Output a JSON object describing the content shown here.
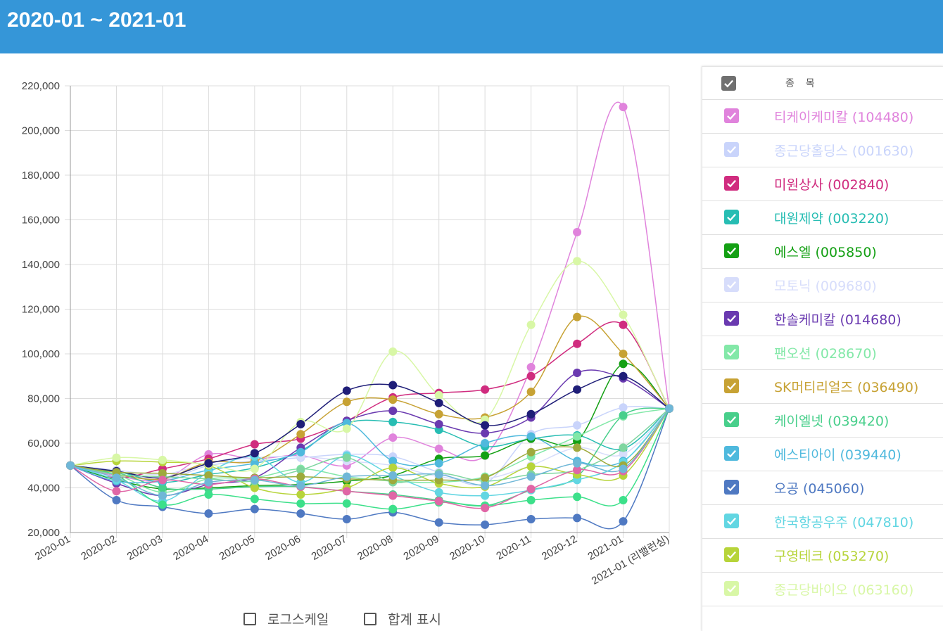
{
  "header": {
    "title": "2020-01 ~ 2021-01"
  },
  "legend": {
    "header_label": "종 목"
  },
  "controls": {
    "log_scale_label": "로그스케일",
    "show_total_label": "합계 표시"
  },
  "chart_data": {
    "type": "line",
    "x": [
      "2020-01",
      "2020-02",
      "2020-03",
      "2020-04",
      "2020-05",
      "2020-06",
      "2020-07",
      "2020-08",
      "2020-09",
      "2020-10",
      "2020-11",
      "2020-12",
      "2021-01",
      "2021-01 (리밸런싱)"
    ],
    "ylim": [
      20000,
      220000
    ],
    "yticks": [
      20000,
      40000,
      60000,
      80000,
      100000,
      120000,
      140000,
      160000,
      180000,
      200000,
      220000
    ],
    "ytick_labels": [
      "20,000",
      "40,000",
      "60,000",
      "80,000",
      "100,000",
      "120,000",
      "140,000",
      "160,000",
      "180,000",
      "200,000",
      "220,000"
    ],
    "grid": true,
    "legend_position": "right",
    "series": [
      {
        "name": "티케이케미칼 (104480)",
        "color": "#e083dc",
        "values": [
          50000,
          45500,
          43500,
          55000,
          53000,
          54500,
          50000,
          62500,
          57500,
          54500,
          94000,
          154500,
          210500,
          75500
        ]
      },
      {
        "name": "종근당홀딩스 (001630)",
        "color": "#c9d4fb",
        "values": [
          50000,
          47500,
          43500,
          50000,
          52000,
          53500,
          55000,
          54000,
          47000,
          42000,
          64000,
          68000,
          76000,
          75500
        ]
      },
      {
        "name": "미원상사 (002840)",
        "color": "#d02c7f",
        "values": [
          50000,
          44500,
          48500,
          53000,
          59500,
          62000,
          70000,
          80500,
          82500,
          84000,
          90000,
          104500,
          113000,
          75500
        ]
      },
      {
        "name": "대원제약 (003220)",
        "color": "#27bdb3",
        "values": [
          50000,
          47500,
          42500,
          46000,
          49000,
          56500,
          69000,
          69500,
          66000,
          58500,
          62000,
          63500,
          57500,
          75500
        ]
      },
      {
        "name": "에스엘 (005850)",
        "color": "#14a014",
        "values": [
          50000,
          43500,
          39500,
          40000,
          41000,
          41500,
          43000,
          45500,
          53000,
          54500,
          62000,
          61000,
          95500,
          75500
        ]
      },
      {
        "name": "모토닉 (009680)",
        "color": "#d7ddfb",
        "values": [
          50000,
          48000,
          46000,
          51000,
          53500,
          54000,
          52000,
          50000,
          45000,
          44000,
          50000,
          58000,
          55000,
          75500
        ]
      },
      {
        "name": "한솔케미칼 (014680)",
        "color": "#6a3ab0",
        "values": [
          50000,
          42000,
          36500,
          41500,
          44500,
          58000,
          70000,
          74500,
          68500,
          64500,
          71500,
          91500,
          89000,
          75500
        ]
      },
      {
        "name": "팬오션 (028670)",
        "color": "#83e8a8",
        "values": [
          50000,
          46000,
          38000,
          44000,
          44500,
          48500,
          45000,
          43000,
          42500,
          45000,
          54000,
          63000,
          72000,
          75500
        ]
      },
      {
        "name": "SK머티리얼즈 (036490)",
        "color": "#c7a234",
        "values": [
          50000,
          46000,
          44000,
          51500,
          52000,
          64000,
          78500,
          79500,
          73000,
          71500,
          83000,
          116500,
          100000,
          75500
        ]
      },
      {
        "name": "케이엘넷 (039420)",
        "color": "#48cf8b",
        "values": [
          50000,
          47000,
          40000,
          39500,
          40500,
          40500,
          38500,
          37000,
          34500,
          32000,
          39000,
          45000,
          72500,
          75500
        ]
      },
      {
        "name": "에스티아이 (039440)",
        "color": "#4fb9dd",
        "values": [
          50000,
          43000,
          43000,
          48000,
          51000,
          56000,
          69000,
          52000,
          51000,
          60000,
          63000,
          52000,
          52000,
          75500
        ]
      },
      {
        "name": "오공 (045060)",
        "color": "#4f79c2",
        "values": [
          50000,
          34500,
          31500,
          28500,
          30500,
          28500,
          26000,
          29000,
          24500,
          23500,
          26000,
          26500,
          25000,
          75500
        ]
      },
      {
        "name": "한국항공우주 (047810)",
        "color": "#62d6e2",
        "values": [
          50000,
          43500,
          34000,
          47000,
          54000,
          42500,
          54500,
          45500,
          38000,
          36500,
          39000,
          43500,
          51500,
          75500
        ]
      },
      {
        "name": "구영테크 (053270)",
        "color": "#b7d43a",
        "values": [
          50000,
          52000,
          51500,
          50000,
          40000,
          37000,
          40000,
          49000,
          42000,
          40500,
          49500,
          46000,
          45500,
          75500
        ]
      },
      {
        "name": "종근당바이오 (063160)",
        "color": "#d8f7a6",
        "values": [
          50000,
          53500,
          52500,
          50500,
          48500,
          69500,
          66500,
          101000,
          81500,
          70500,
          113000,
          141500,
          117500,
          75500
        ]
      },
      {
        "color": "#3ce08a",
        "values": [
          50000,
          45500,
          32500,
          37000,
          35000,
          33000,
          33000,
          30500,
          33500,
          32000,
          34500,
          36000,
          34500,
          75500
        ]
      },
      {
        "color": "#1f1e78",
        "values": [
          50000,
          47500,
          44500,
          51000,
          55500,
          68500,
          83500,
          86000,
          78000,
          68000,
          73000,
          84000,
          90000,
          75500
        ]
      },
      {
        "color": "#7fd6a0",
        "values": [
          50000,
          46000,
          45000,
          44000,
          43000,
          48000,
          53500,
          42500,
          46500,
          43000,
          46000,
          48000,
          58000,
          75500
        ]
      },
      {
        "color": "#9eaa3c",
        "values": [
          50000,
          47000,
          46500,
          45500,
          44500,
          45000,
          44000,
          43500,
          43500,
          44500,
          56000,
          58000,
          50000,
          75500
        ]
      },
      {
        "color": "#e066a6",
        "values": [
          50000,
          38500,
          43500,
          41500,
          44000,
          40500,
          38500,
          36500,
          34000,
          31000,
          39500,
          48000,
          47500,
          75500
        ]
      },
      {
        "color": "#6fb7d7",
        "values": [
          50000,
          44500,
          36500,
          42500,
          43500,
          41000,
          45000,
          45500,
          46000,
          41000,
          45000,
          51000,
          48500,
          75500
        ]
      }
    ]
  }
}
